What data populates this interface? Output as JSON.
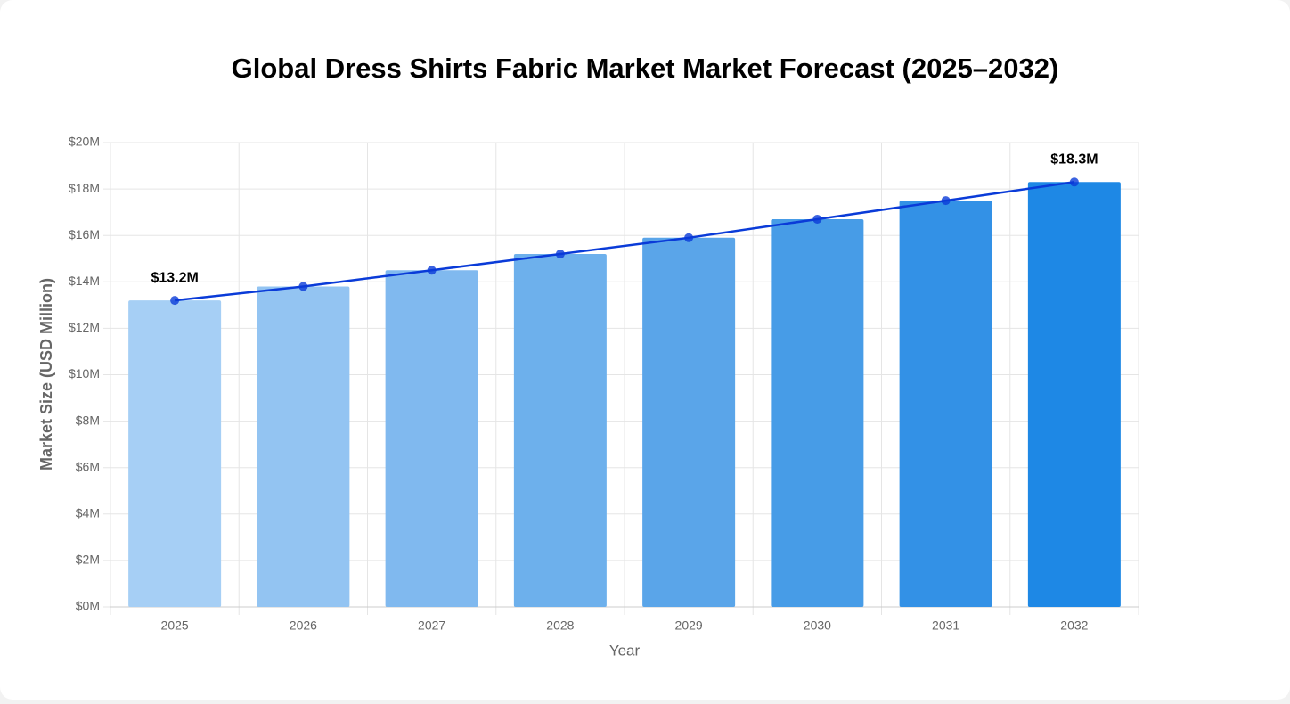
{
  "chart_data": {
    "type": "bar",
    "title": "Global Dress Shirts Fabric Market Market Forecast (2025–2032)",
    "x_label": "Year",
    "y_label": "Market Size (USD Million)",
    "categories": [
      "2025",
      "2026",
      "2027",
      "2028",
      "2029",
      "2030",
      "2031",
      "2032"
    ],
    "series": [
      {
        "type": "bar",
        "colors": [
          "#a6cff5",
          "#93c4f2",
          "#80b9ef",
          "#6db0ec",
          "#5aa5e9",
          "#479ce7",
          "#3391e6",
          "#1e88e5"
        ],
        "values": [
          13.2,
          13.8,
          14.5,
          15.2,
          15.9,
          16.7,
          17.5,
          18.3
        ]
      },
      {
        "type": "line",
        "color": "#0a3bd8",
        "values": [
          13.2,
          13.8,
          14.5,
          15.2,
          15.9,
          16.7,
          17.5,
          18.3
        ],
        "value_labels": [
          "$13.2M",
          null,
          null,
          null,
          null,
          null,
          null,
          "$18.3M"
        ]
      }
    ],
    "ylim": [
      0,
      20
    ],
    "yticks": [
      {
        "value": 0,
        "label": "$0M"
      },
      {
        "value": 2,
        "label": "$2M"
      },
      {
        "value": 4,
        "label": "$4M"
      },
      {
        "value": 6,
        "label": "$6M"
      },
      {
        "value": 8,
        "label": "$8M"
      },
      {
        "value": 10,
        "label": "$10M"
      },
      {
        "value": 12,
        "label": "$12M"
      },
      {
        "value": 14,
        "label": "$14M"
      },
      {
        "value": 16,
        "label": "$16M"
      },
      {
        "value": 18,
        "label": "$18M"
      },
      {
        "value": 20,
        "label": "$20M"
      }
    ],
    "grid": true
  }
}
